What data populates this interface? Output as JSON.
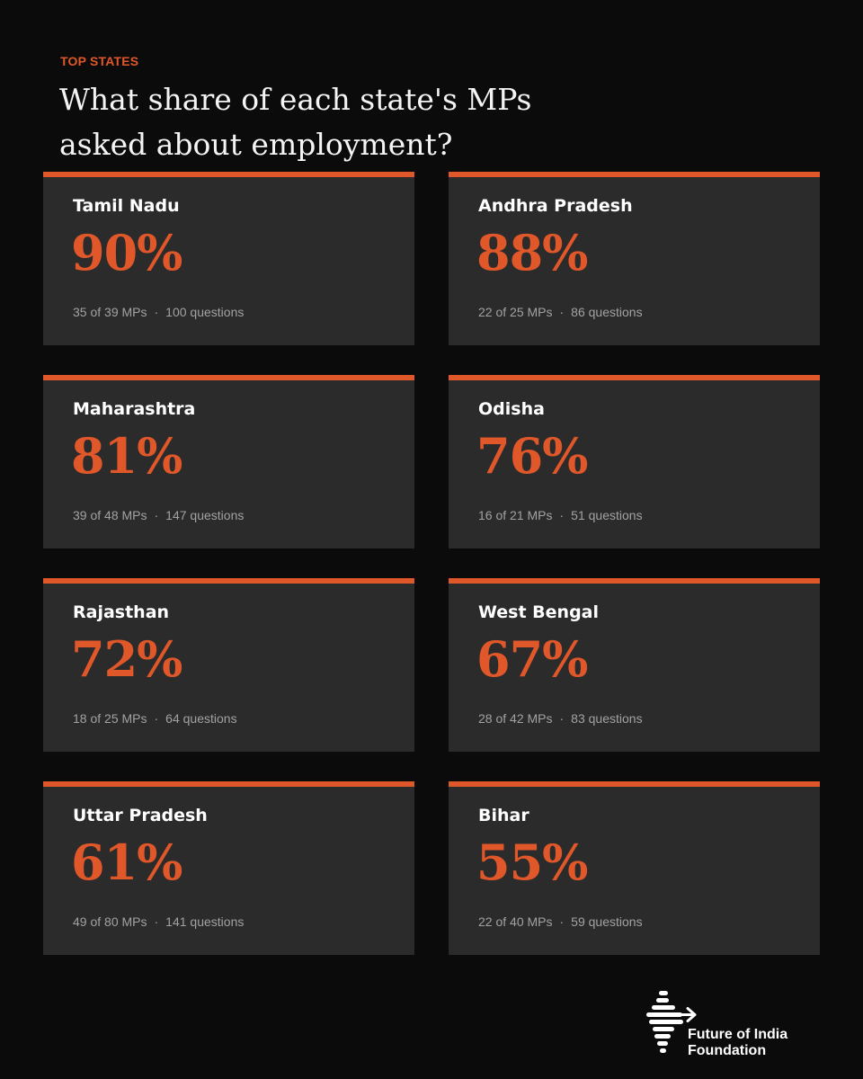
{
  "eyebrow": "TOP STATES",
  "title": "What share of each state's MPs asked about employment?",
  "separator": "·",
  "chart_data": {
    "type": "table",
    "title": "What share of each state's MPs asked about employment?",
    "subtitle": "TOP STATES",
    "columns": [
      "state",
      "share_percent",
      "mps_asked",
      "total_mps",
      "questions"
    ],
    "rows": [
      {
        "state": "Tamil Nadu",
        "share": "90%",
        "share_value": 90,
        "mps": "35 of 39 MPs",
        "mps_asked": 35,
        "total_mps": 39,
        "questions": "100 questions",
        "question_count": 100
      },
      {
        "state": "Andhra Pradesh",
        "share": "88%",
        "share_value": 88,
        "mps": "22 of 25 MPs",
        "mps_asked": 22,
        "total_mps": 25,
        "questions": "86 questions",
        "question_count": 86
      },
      {
        "state": "Maharashtra",
        "share": "81%",
        "share_value": 81,
        "mps": "39 of 48 MPs",
        "mps_asked": 39,
        "total_mps": 48,
        "questions": "147 questions",
        "question_count": 147
      },
      {
        "state": "Odisha",
        "share": "76%",
        "share_value": 76,
        "mps": "16 of 21 MPs",
        "mps_asked": 16,
        "total_mps": 21,
        "questions": "51 questions",
        "question_count": 51
      },
      {
        "state": "Rajasthan",
        "share": "72%",
        "share_value": 72,
        "mps": "18 of 25 MPs",
        "mps_asked": 18,
        "total_mps": 25,
        "questions": "64 questions",
        "question_count": 64
      },
      {
        "state": "West Bengal",
        "share": "67%",
        "share_value": 67,
        "mps": "28 of 42 MPs",
        "mps_asked": 28,
        "total_mps": 42,
        "questions": "83 questions",
        "question_count": 83
      },
      {
        "state": "Uttar Pradesh",
        "share": "61%",
        "share_value": 61,
        "mps": "49 of 80 MPs",
        "mps_asked": 49,
        "total_mps": 80,
        "questions": "141 questions",
        "question_count": 141
      },
      {
        "state": "Bihar",
        "share": "55%",
        "share_value": 55,
        "mps": "22 of 40 MPs",
        "mps_asked": 22,
        "total_mps": 40,
        "questions": "59 questions",
        "question_count": 59
      }
    ]
  },
  "logo": {
    "line1": "Future of India",
    "line2": "Foundation",
    "icon": "india-arrow-logo-icon"
  },
  "colors": {
    "background": "#0b0b0b",
    "card": "#2b2b2b",
    "accent": "#e0572a",
    "muted": "#a2a2a2"
  }
}
